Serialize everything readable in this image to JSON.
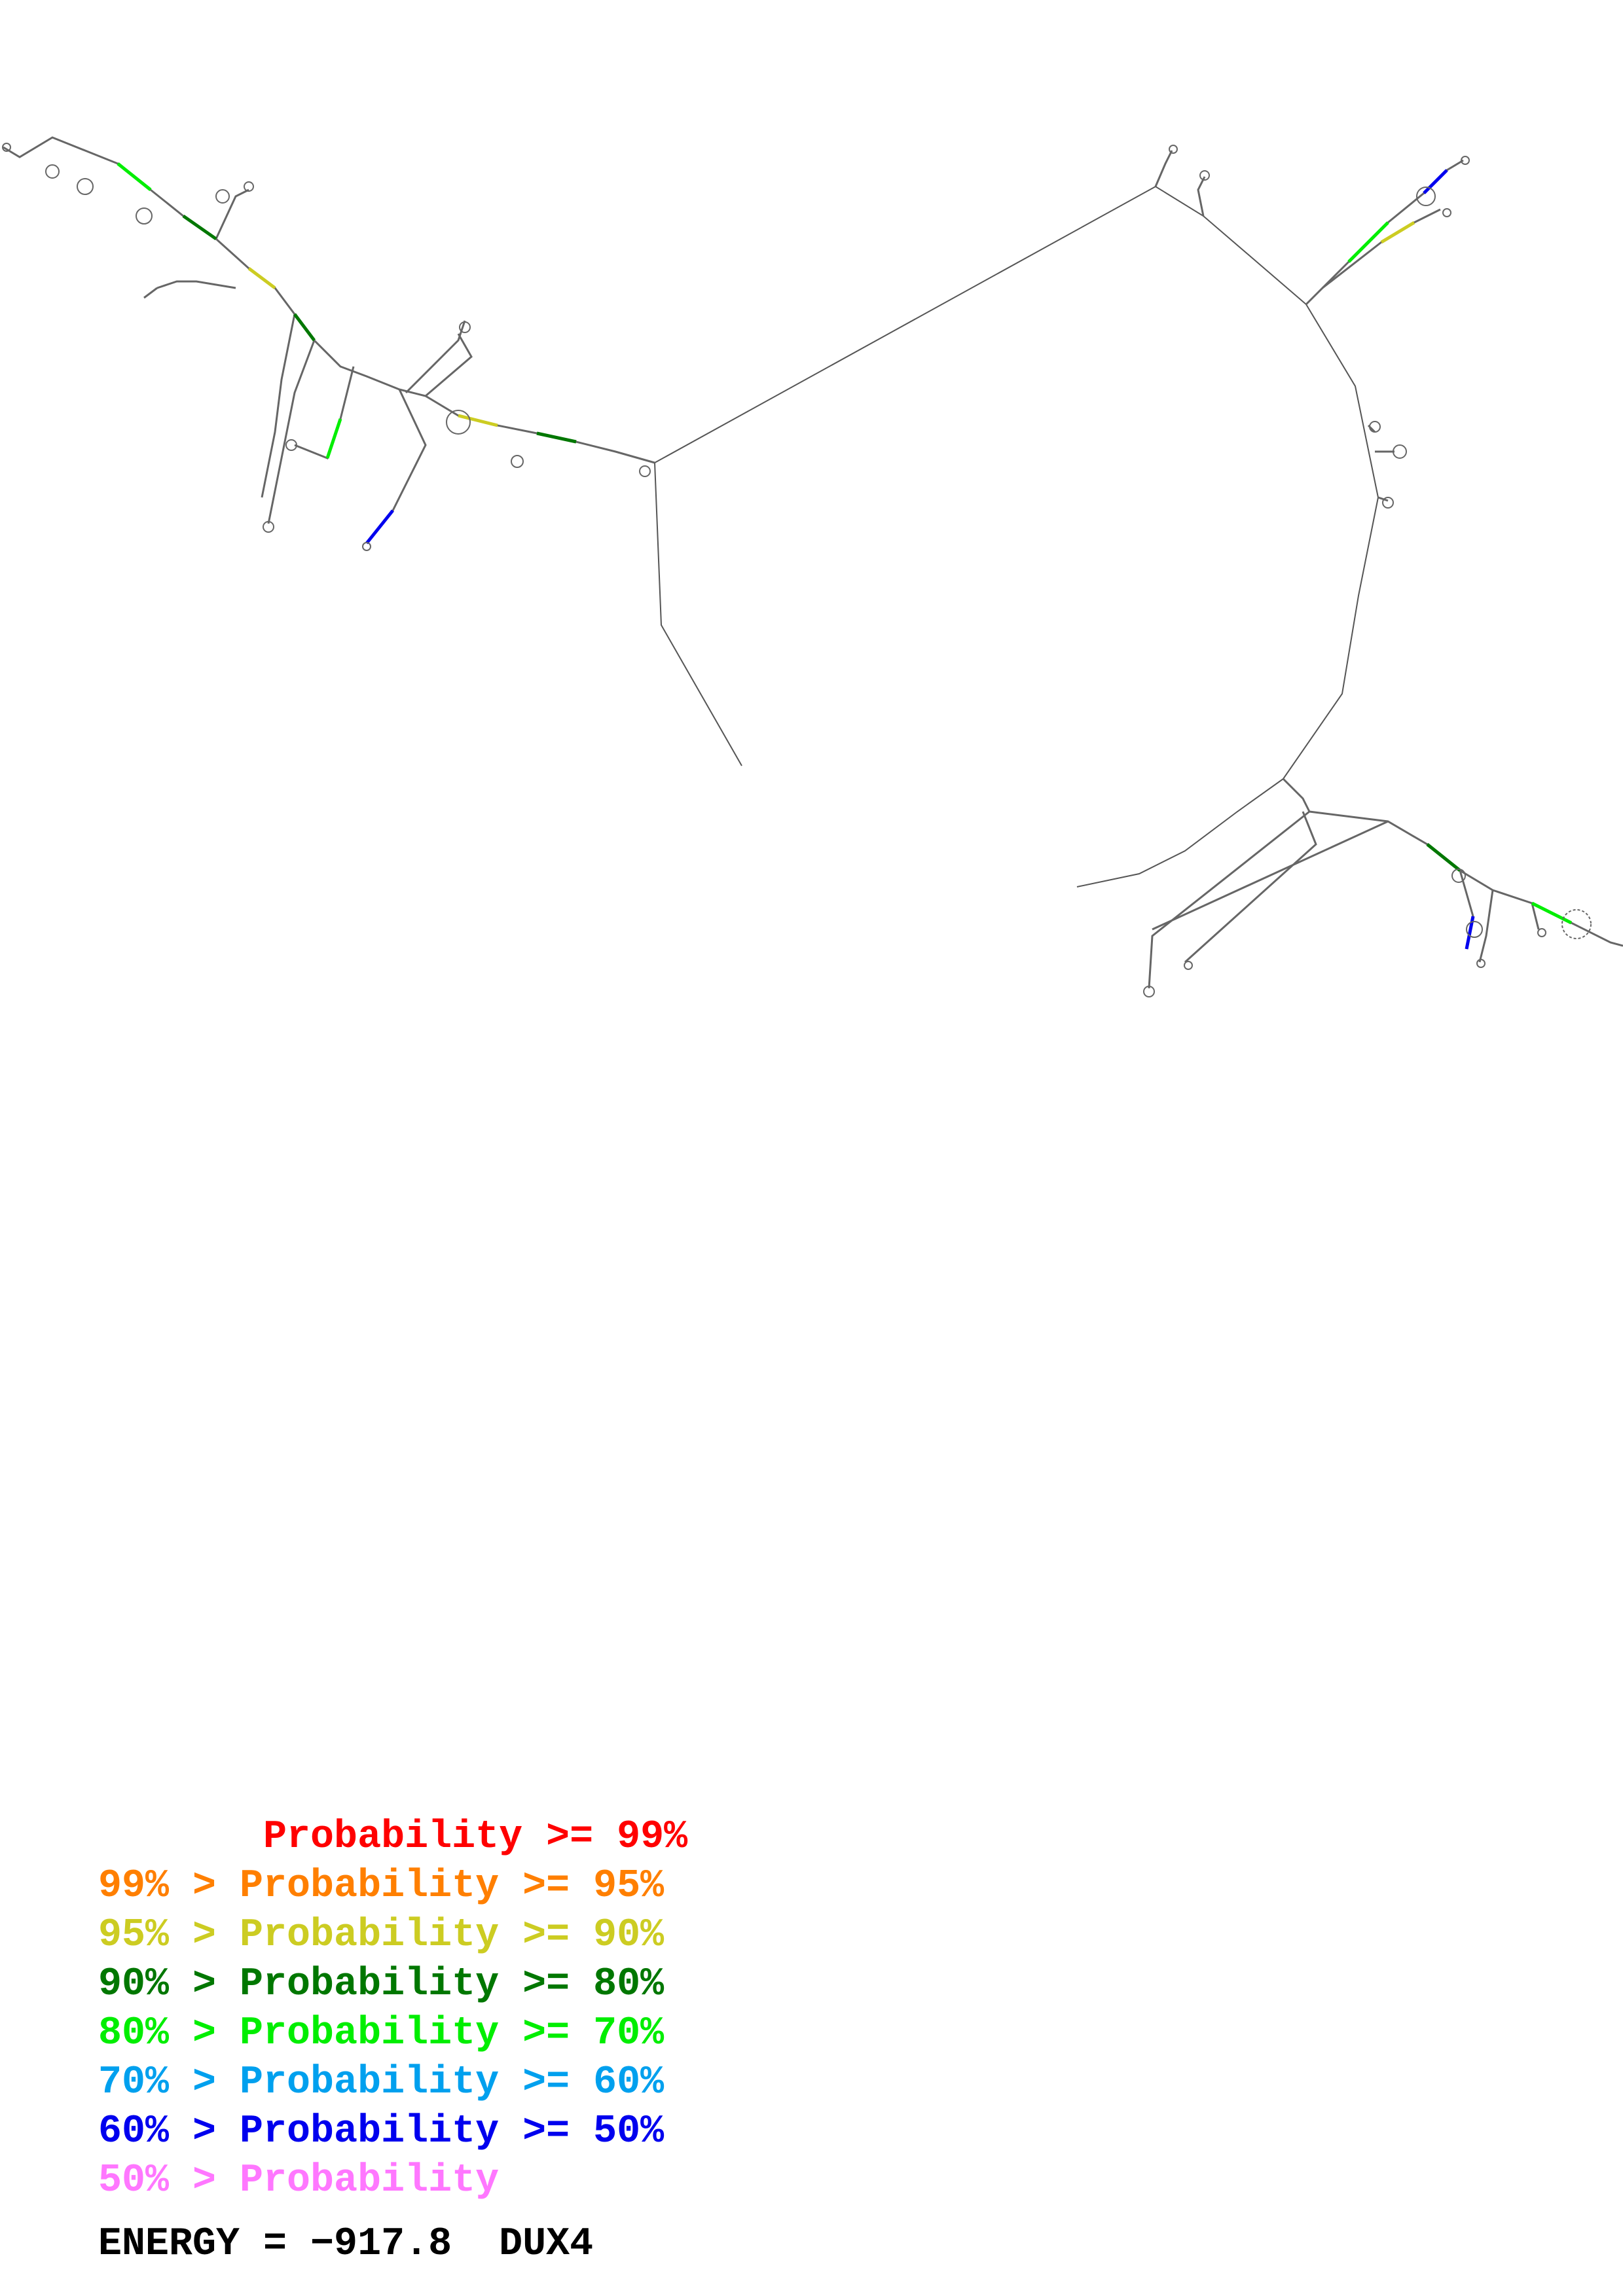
{
  "legend": {
    "entries": [
      {
        "text": "       Probability >= 99%",
        "color": "#ff0000"
      },
      {
        "text": "99% > Probability >= 95%",
        "color": "#ff7f00"
      },
      {
        "text": "95% > Probability >= 90%",
        "color": "#cccc22"
      },
      {
        "text": "90% > Probability >= 80%",
        "color": "#007700"
      },
      {
        "text": "80% > Probability >= 70%",
        "color": "#00ee00"
      },
      {
        "text": "70% > Probability >= 60%",
        "color": "#00a0ee"
      },
      {
        "text": "60% > Probability >= 50%",
        "color": "#0000ee"
      },
      {
        "text": "50% > Probability",
        "color": "#ff77ff"
      }
    ]
  },
  "footer": {
    "energy_label": "ENERGY = −917.8",
    "sequence_name": "DUX4"
  }
}
